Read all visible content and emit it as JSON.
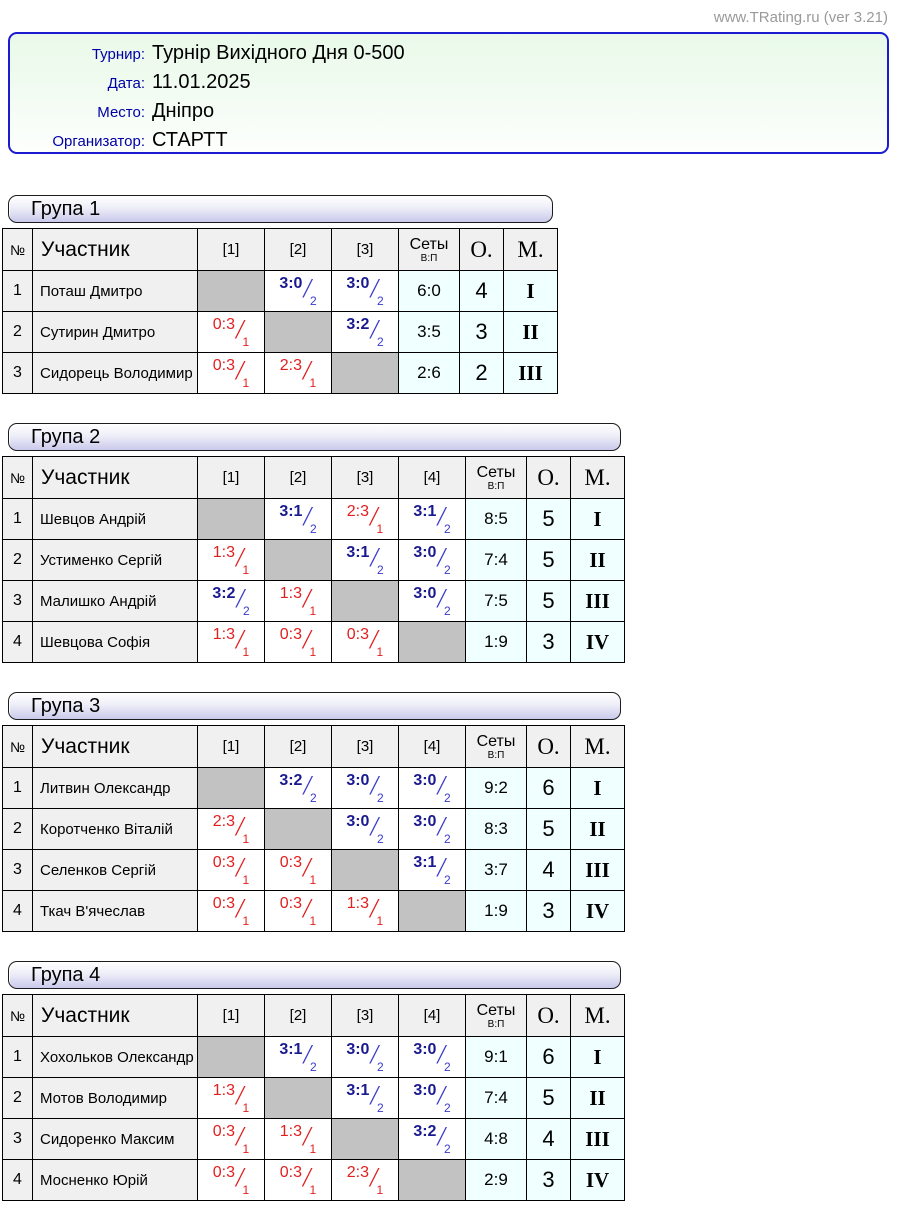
{
  "site": {
    "watermark": "www.TRating.ru (ver 3.21)"
  },
  "info": {
    "rows": [
      {
        "label": "Турнир:",
        "value": "Турнір Вихідного Дня 0-500"
      },
      {
        "label": "Дата:",
        "value": "11.01.2025"
      },
      {
        "label": "Место:",
        "value": "Дніпро"
      },
      {
        "label": "Организатор:",
        "value": "СТАРТТ"
      }
    ]
  },
  "table_headers": {
    "num": "№",
    "participant": "Участник",
    "sets": "Сеты",
    "sets_sub": "В:П",
    "points": "О.",
    "place": "М."
  },
  "colors": {
    "win_dark": "#1a1a90",
    "win_light": "#3b3bcc",
    "loss_red": "#e01f1f",
    "self_gray": "#c2c2c2",
    "cell_gray": "#f0f0f0",
    "cell_azure": "#f0ffff",
    "label_navy": "#0000a6",
    "box_border": "#1b1bd1"
  },
  "groups": [
    {
      "title": "Група 1",
      "cols": [
        "[1]",
        "[2]",
        "[3]"
      ],
      "rows": [
        {
          "num": "1",
          "name": "Поташ Дмитро",
          "cells": [
            {
              "type": "self"
            },
            {
              "type": "win",
              "score": "3:0",
              "pts": "2"
            },
            {
              "type": "win",
              "score": "3:0",
              "pts": "2"
            }
          ],
          "sets": "6:0",
          "points": "4",
          "place": "I"
        },
        {
          "num": "2",
          "name": "Сутирин Дмитро",
          "cells": [
            {
              "type": "loss",
              "score": "0:3",
              "pts": "1"
            },
            {
              "type": "self"
            },
            {
              "type": "win",
              "score": "3:2",
              "pts": "2"
            }
          ],
          "sets": "3:5",
          "points": "3",
          "place": "II"
        },
        {
          "num": "3",
          "name": "Сидорець Володимир",
          "cells": [
            {
              "type": "loss",
              "score": "0:3",
              "pts": "1"
            },
            {
              "type": "loss",
              "score": "2:3",
              "pts": "1"
            },
            {
              "type": "self"
            }
          ],
          "sets": "2:6",
          "points": "2",
          "place": "III"
        }
      ]
    },
    {
      "title": "Група 2",
      "cols": [
        "[1]",
        "[2]",
        "[3]",
        "[4]"
      ],
      "rows": [
        {
          "num": "1",
          "name": "Шевцов Андрій",
          "cells": [
            {
              "type": "self"
            },
            {
              "type": "win",
              "score": "3:1",
              "pts": "2"
            },
            {
              "type": "loss",
              "score": "2:3",
              "pts": "1"
            },
            {
              "type": "win",
              "score": "3:1",
              "pts": "2"
            }
          ],
          "sets": "8:5",
          "points": "5",
          "place": "I"
        },
        {
          "num": "2",
          "name": "Устименко Сергій",
          "cells": [
            {
              "type": "loss",
              "score": "1:3",
              "pts": "1"
            },
            {
              "type": "self"
            },
            {
              "type": "win",
              "score": "3:1",
              "pts": "2"
            },
            {
              "type": "win",
              "score": "3:0",
              "pts": "2"
            }
          ],
          "sets": "7:4",
          "points": "5",
          "place": "II"
        },
        {
          "num": "3",
          "name": "Малишко Андрій",
          "cells": [
            {
              "type": "win",
              "score": "3:2",
              "pts": "2"
            },
            {
              "type": "loss",
              "score": "1:3",
              "pts": "1"
            },
            {
              "type": "self"
            },
            {
              "type": "win",
              "score": "3:0",
              "pts": "2"
            }
          ],
          "sets": "7:5",
          "points": "5",
          "place": "III"
        },
        {
          "num": "4",
          "name": "Шевцова Софія",
          "cells": [
            {
              "type": "loss",
              "score": "1:3",
              "pts": "1"
            },
            {
              "type": "loss",
              "score": "0:3",
              "pts": "1"
            },
            {
              "type": "loss",
              "score": "0:3",
              "pts": "1"
            },
            {
              "type": "self"
            }
          ],
          "sets": "1:9",
          "points": "3",
          "place": "IV"
        }
      ]
    },
    {
      "title": "Група 3",
      "cols": [
        "[1]",
        "[2]",
        "[3]",
        "[4]"
      ],
      "rows": [
        {
          "num": "1",
          "name": "Литвин Олександр",
          "cells": [
            {
              "type": "self"
            },
            {
              "type": "win",
              "score": "3:2",
              "pts": "2"
            },
            {
              "type": "win",
              "score": "3:0",
              "pts": "2"
            },
            {
              "type": "win",
              "score": "3:0",
              "pts": "2"
            }
          ],
          "sets": "9:2",
          "points": "6",
          "place": "I"
        },
        {
          "num": "2",
          "name": "Коротченко Віталій",
          "cells": [
            {
              "type": "loss",
              "score": "2:3",
              "pts": "1"
            },
            {
              "type": "self"
            },
            {
              "type": "win",
              "score": "3:0",
              "pts": "2"
            },
            {
              "type": "win",
              "score": "3:0",
              "pts": "2"
            }
          ],
          "sets": "8:3",
          "points": "5",
          "place": "II"
        },
        {
          "num": "3",
          "name": "Селенков Сергій",
          "cells": [
            {
              "type": "loss",
              "score": "0:3",
              "pts": "1"
            },
            {
              "type": "loss",
              "score": "0:3",
              "pts": "1"
            },
            {
              "type": "self"
            },
            {
              "type": "win",
              "score": "3:1",
              "pts": "2"
            }
          ],
          "sets": "3:7",
          "points": "4",
          "place": "III"
        },
        {
          "num": "4",
          "name": "Ткач В'ячеслав",
          "cells": [
            {
              "type": "loss",
              "score": "0:3",
              "pts": "1"
            },
            {
              "type": "loss",
              "score": "0:3",
              "pts": "1"
            },
            {
              "type": "loss",
              "score": "1:3",
              "pts": "1"
            },
            {
              "type": "self"
            }
          ],
          "sets": "1:9",
          "points": "3",
          "place": "IV"
        }
      ]
    },
    {
      "title": "Група 4",
      "cols": [
        "[1]",
        "[2]",
        "[3]",
        "[4]"
      ],
      "rows": [
        {
          "num": "1",
          "name": "Хохольков Олександр",
          "cells": [
            {
              "type": "self"
            },
            {
              "type": "win",
              "score": "3:1",
              "pts": "2"
            },
            {
              "type": "win",
              "score": "3:0",
              "pts": "2"
            },
            {
              "type": "win",
              "score": "3:0",
              "pts": "2"
            }
          ],
          "sets": "9:1",
          "points": "6",
          "place": "I"
        },
        {
          "num": "2",
          "name": "Мотов Володимир",
          "cells": [
            {
              "type": "loss",
              "score": "1:3",
              "pts": "1"
            },
            {
              "type": "self"
            },
            {
              "type": "win",
              "score": "3:1",
              "pts": "2"
            },
            {
              "type": "win",
              "score": "3:0",
              "pts": "2"
            }
          ],
          "sets": "7:4",
          "points": "5",
          "place": "II"
        },
        {
          "num": "3",
          "name": "Сидоренко Максим",
          "cells": [
            {
              "type": "loss",
              "score": "0:3",
              "pts": "1"
            },
            {
              "type": "loss",
              "score": "1:3",
              "pts": "1"
            },
            {
              "type": "self"
            },
            {
              "type": "win",
              "score": "3:2",
              "pts": "2"
            }
          ],
          "sets": "4:8",
          "points": "4",
          "place": "III"
        },
        {
          "num": "4",
          "name": "Мосненко Юрій",
          "cells": [
            {
              "type": "loss",
              "score": "0:3",
              "pts": "1"
            },
            {
              "type": "loss",
              "score": "0:3",
              "pts": "1"
            },
            {
              "type": "loss",
              "score": "2:3",
              "pts": "1"
            },
            {
              "type": "self"
            }
          ],
          "sets": "2:9",
          "points": "3",
          "place": "IV"
        }
      ]
    }
  ]
}
